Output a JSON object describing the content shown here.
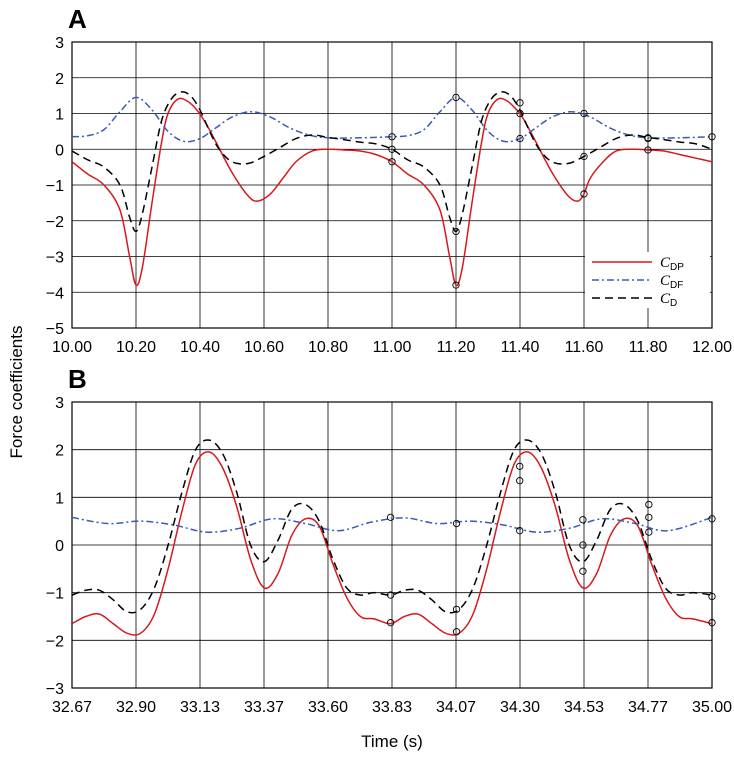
{
  "ylabel": "Force coefficients",
  "xlabel": "Time (s)",
  "chart_data": [
    {
      "type": "line",
      "panel": "A",
      "xlim": [
        10.0,
        12.0
      ],
      "ylim": [
        -5,
        3
      ],
      "xticks": [
        "10.00",
        "10.20",
        "10.40",
        "10.60",
        "10.80",
        "11.00",
        "11.20",
        "11.40",
        "11.60",
        "11.80",
        "12.00"
      ],
      "yticks": [
        "3",
        "2",
        "1",
        "0",
        "−1",
        "−2",
        "−3",
        "−4",
        "−5"
      ],
      "grid": true,
      "legend": "right",
      "series": [
        {
          "name": "C_DP",
          "label_main": "C",
          "label_sub": "DP",
          "color": "#d7191c",
          "style": "solid",
          "x": [
            10.0,
            10.05,
            10.1,
            10.15,
            10.18,
            10.2,
            10.22,
            10.25,
            10.28,
            10.3,
            10.33,
            10.36,
            10.39,
            10.42,
            10.45,
            10.5,
            10.55,
            10.58,
            10.62,
            10.66,
            10.7,
            10.75,
            10.8,
            10.85,
            10.9,
            10.95,
            11.0,
            11.05,
            11.1,
            11.15,
            11.18,
            11.2,
            11.22,
            11.25,
            11.28,
            11.3,
            11.33,
            11.36,
            11.39,
            11.4,
            11.42,
            11.45,
            11.5,
            11.55,
            11.58,
            11.6,
            11.62,
            11.66,
            11.7,
            11.75,
            11.8,
            11.85,
            11.9,
            11.95,
            12.0
          ],
          "y": [
            -0.35,
            -0.7,
            -1.0,
            -1.7,
            -3.0,
            -3.8,
            -3.3,
            -1.5,
            0.2,
            1.0,
            1.4,
            1.35,
            1.1,
            0.7,
            0.2,
            -0.65,
            -1.3,
            -1.45,
            -1.25,
            -0.8,
            -0.35,
            -0.05,
            0.0,
            -0.02,
            -0.05,
            -0.15,
            -0.35,
            -0.7,
            -1.0,
            -1.7,
            -3.0,
            -3.8,
            -3.3,
            -1.5,
            0.2,
            1.0,
            1.4,
            1.35,
            1.1,
            1.0,
            0.7,
            0.2,
            -0.65,
            -1.3,
            -1.45,
            -1.25,
            -0.8,
            -0.35,
            -0.05,
            0.0,
            -0.02,
            -0.05,
            -0.15,
            -0.25,
            -0.35
          ]
        },
        {
          "name": "C_DF",
          "label_main": "C",
          "label_sub": "DF",
          "color": "#3a5bb8",
          "style": "dashdot",
          "x": [
            10.0,
            10.05,
            10.1,
            10.15,
            10.2,
            10.25,
            10.3,
            10.35,
            10.4,
            10.45,
            10.5,
            10.56,
            10.62,
            10.68,
            10.74,
            10.8,
            10.9,
            11.0,
            11.05,
            11.1,
            11.15,
            11.2,
            11.25,
            11.3,
            11.35,
            11.4,
            11.45,
            11.5,
            11.56,
            11.62,
            11.68,
            11.74,
            11.8,
            11.9,
            12.0
          ],
          "y": [
            0.35,
            0.38,
            0.55,
            1.05,
            1.45,
            1.1,
            0.5,
            0.22,
            0.3,
            0.6,
            0.9,
            1.05,
            0.9,
            0.6,
            0.4,
            0.32,
            0.32,
            0.35,
            0.38,
            0.55,
            1.05,
            1.45,
            1.1,
            0.5,
            0.22,
            0.3,
            0.6,
            0.9,
            1.05,
            0.9,
            0.6,
            0.4,
            0.32,
            0.32,
            0.35
          ]
        },
        {
          "name": "C_D",
          "label_main": "C",
          "label_sub": "D",
          "color": "#000000",
          "style": "dashed",
          "x": [
            10.0,
            10.05,
            10.1,
            10.15,
            10.18,
            10.2,
            10.22,
            10.25,
            10.28,
            10.31,
            10.34,
            10.37,
            10.4,
            10.43,
            10.46,
            10.5,
            10.55,
            10.6,
            10.65,
            10.7,
            10.75,
            10.8,
            10.85,
            10.9,
            10.95,
            11.0,
            11.05,
            11.1,
            11.15,
            11.18,
            11.2,
            11.22,
            11.25,
            11.28,
            11.31,
            11.34,
            11.37,
            11.4,
            11.43,
            11.46,
            11.5,
            11.55,
            11.6,
            11.65,
            11.7,
            11.75,
            11.8,
            11.85,
            11.9,
            11.95,
            12.0
          ],
          "y": [
            -0.05,
            -0.3,
            -0.5,
            -1.0,
            -1.9,
            -2.3,
            -1.8,
            -0.5,
            0.8,
            1.4,
            1.6,
            1.5,
            1.1,
            0.5,
            0.0,
            -0.35,
            -0.4,
            -0.2,
            0.05,
            0.3,
            0.4,
            0.33,
            0.27,
            0.2,
            0.15,
            0.0,
            -0.3,
            -0.5,
            -1.0,
            -1.9,
            -2.3,
            -1.8,
            -0.5,
            0.8,
            1.4,
            1.6,
            1.5,
            1.1,
            0.5,
            0.0,
            -0.35,
            -0.4,
            -0.2,
            0.05,
            0.3,
            0.4,
            0.33,
            0.27,
            0.2,
            0.15,
            0.0
          ]
        }
      ],
      "markers": [
        {
          "x": 11.0,
          "y": -0.35
        },
        {
          "x": 11.2,
          "y": -3.8
        },
        {
          "x": 11.4,
          "y": 1.0
        },
        {
          "x": 11.6,
          "y": -1.25
        },
        {
          "x": 11.8,
          "y": -0.02
        },
        {
          "x": 11.0,
          "y": 0.35
        },
        {
          "x": 11.2,
          "y": 1.45
        },
        {
          "x": 11.4,
          "y": 0.3
        },
        {
          "x": 11.6,
          "y": 1.0
        },
        {
          "x": 11.8,
          "y": 0.32
        },
        {
          "x": 12.0,
          "y": 0.35
        },
        {
          "x": 11.0,
          "y": 0.0
        },
        {
          "x": 11.2,
          "y": -2.3
        },
        {
          "x": 11.4,
          "y": 1.3
        },
        {
          "x": 11.6,
          "y": -0.2
        },
        {
          "x": 11.8,
          "y": 0.3
        }
      ]
    },
    {
      "type": "line",
      "panel": "B",
      "xlim": [
        32.67,
        35.0
      ],
      "ylim": [
        -3,
        3
      ],
      "xticks": [
        "32.67",
        "32.90",
        "33.13",
        "33.37",
        "33.60",
        "33.83",
        "34.07",
        "34.30",
        "34.53",
        "34.77",
        "35.00"
      ],
      "yticks": [
        "3",
        "2",
        "1",
        "0",
        "−1",
        "−2",
        "−3"
      ],
      "grid": true,
      "series": [
        {
          "name": "C_DP",
          "color": "#d7191c",
          "style": "solid",
          "x": [
            32.67,
            32.72,
            32.77,
            32.82,
            32.87,
            32.92,
            32.97,
            33.02,
            33.07,
            33.12,
            33.17,
            33.22,
            33.27,
            33.32,
            33.37,
            33.42,
            33.47,
            33.52,
            33.57,
            33.62,
            33.67,
            33.72,
            33.77,
            33.83,
            33.88,
            33.93,
            33.98,
            34.03,
            34.08,
            34.13,
            34.18,
            34.23,
            34.28,
            34.33,
            34.38,
            34.43,
            34.48,
            34.53,
            34.58,
            34.63,
            34.68,
            34.73,
            34.78,
            34.83,
            34.88,
            34.93,
            35.0
          ],
          "y": [
            -1.65,
            -1.5,
            -1.45,
            -1.65,
            -1.85,
            -1.85,
            -1.45,
            -0.5,
            0.7,
            1.7,
            1.95,
            1.6,
            0.8,
            -0.3,
            -0.9,
            -0.6,
            0.2,
            0.55,
            0.4,
            -0.4,
            -1.1,
            -1.5,
            -1.55,
            -1.65,
            -1.5,
            -1.45,
            -1.65,
            -1.85,
            -1.85,
            -1.45,
            -0.5,
            0.7,
            1.7,
            1.95,
            1.6,
            0.8,
            -0.3,
            -0.9,
            -0.6,
            0.2,
            0.55,
            0.4,
            -0.4,
            -1.1,
            -1.5,
            -1.55,
            -1.65
          ]
        },
        {
          "name": "C_DF",
          "color": "#3a5bb8",
          "style": "dashdot",
          "x": [
            32.67,
            32.8,
            32.92,
            33.04,
            33.16,
            33.28,
            33.4,
            33.52,
            33.64,
            33.76,
            33.88,
            34.0,
            34.12,
            34.24,
            34.36,
            34.48,
            34.6,
            34.72,
            34.84,
            35.0
          ],
          "y": [
            0.58,
            0.45,
            0.5,
            0.42,
            0.27,
            0.35,
            0.55,
            0.45,
            0.3,
            0.48,
            0.57,
            0.45,
            0.5,
            0.42,
            0.27,
            0.35,
            0.55,
            0.45,
            0.3,
            0.58
          ]
        },
        {
          "name": "C_D",
          "color": "#000000",
          "style": "dashed",
          "x": [
            32.67,
            32.72,
            32.77,
            32.82,
            32.87,
            32.92,
            32.97,
            33.02,
            33.07,
            33.12,
            33.17,
            33.22,
            33.27,
            33.32,
            33.37,
            33.42,
            33.47,
            33.52,
            33.57,
            33.62,
            33.67,
            33.72,
            33.77,
            33.83,
            33.88,
            33.93,
            33.98,
            34.03,
            34.08,
            34.13,
            34.18,
            34.23,
            34.28,
            34.33,
            34.38,
            34.43,
            34.48,
            34.53,
            34.58,
            34.63,
            34.68,
            34.73,
            34.78,
            34.83,
            34.88,
            34.93,
            35.0
          ],
          "y": [
            -1.05,
            -0.95,
            -0.95,
            -1.15,
            -1.4,
            -1.35,
            -0.9,
            0.0,
            1.1,
            2.0,
            2.2,
            1.9,
            1.1,
            0.0,
            -0.35,
            0.1,
            0.75,
            0.85,
            0.5,
            -0.3,
            -0.9,
            -1.05,
            -1.0,
            -1.05,
            -0.95,
            -0.95,
            -1.15,
            -1.4,
            -1.35,
            -0.9,
            0.0,
            1.1,
            2.0,
            2.2,
            1.9,
            1.1,
            0.0,
            -0.35,
            0.1,
            0.75,
            0.85,
            0.5,
            -0.3,
            -0.9,
            -1.05,
            -1.0,
            -1.05
          ]
        }
      ],
      "markers": [
        {
          "x": 33.83,
          "y": -1.63
        },
        {
          "x": 34.07,
          "y": -1.82
        },
        {
          "x": 34.3,
          "y": 1.35
        },
        {
          "x": 34.53,
          "y": -0.55
        },
        {
          "x": 34.77,
          "y": 0.58
        },
        {
          "x": 35.0,
          "y": -1.63
        },
        {
          "x": 33.83,
          "y": 0.58
        },
        {
          "x": 34.07,
          "y": 0.45
        },
        {
          "x": 34.3,
          "y": 0.3
        },
        {
          "x": 34.53,
          "y": 0.53
        },
        {
          "x": 34.77,
          "y": 0.27
        },
        {
          "x": 35.0,
          "y": 0.55
        },
        {
          "x": 33.83,
          "y": -1.05
        },
        {
          "x": 34.07,
          "y": -1.35
        },
        {
          "x": 34.3,
          "y": 1.65
        },
        {
          "x": 34.53,
          "y": 0.0
        },
        {
          "x": 34.77,
          "y": 0.85
        },
        {
          "x": 35.0,
          "y": -1.08
        }
      ]
    }
  ]
}
